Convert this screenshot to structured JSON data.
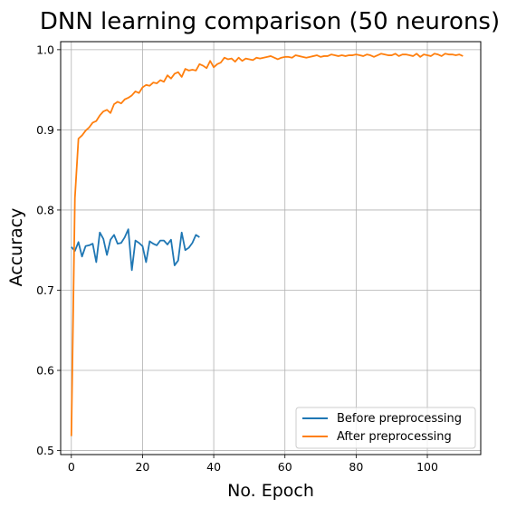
{
  "chart_data": {
    "type": "line",
    "title": "DNN learning comparison (50 neurons)",
    "xlabel": "No. Epoch",
    "ylabel": "Accuracy",
    "xlim": [
      -3,
      115
    ],
    "ylim": [
      0.495,
      1.01
    ],
    "xticks": [
      0,
      20,
      40,
      60,
      80,
      100
    ],
    "yticks": [
      0.5,
      0.6,
      0.7,
      0.8,
      0.9,
      1.0
    ],
    "ytick_labels": [
      "0.5",
      "0.6",
      "0.7",
      "0.8",
      "0.9",
      "1.0"
    ],
    "grid": true,
    "legend_position": "lower-right",
    "series": [
      {
        "name": "Before preprocessing",
        "color": "#1f77b4",
        "x": [
          0,
          1,
          2,
          3,
          4,
          5,
          6,
          7,
          8,
          9,
          10,
          11,
          12,
          13,
          14,
          15,
          16,
          17,
          18,
          19,
          20,
          21,
          22,
          23,
          24,
          25,
          26,
          27,
          28,
          29,
          30,
          31,
          32,
          33,
          34,
          35,
          36
        ],
        "y": [
          0.754,
          0.749,
          0.76,
          0.742,
          0.755,
          0.756,
          0.758,
          0.735,
          0.772,
          0.764,
          0.744,
          0.763,
          0.769,
          0.758,
          0.759,
          0.766,
          0.776,
          0.725,
          0.762,
          0.759,
          0.755,
          0.735,
          0.761,
          0.758,
          0.756,
          0.762,
          0.762,
          0.757,
          0.763,
          0.731,
          0.737,
          0.772,
          0.75,
          0.753,
          0.759,
          0.769,
          0.766
        ]
      },
      {
        "name": "After preprocessing",
        "color": "#ff7f0e",
        "x": [
          0,
          1,
          2,
          3,
          4,
          5,
          6,
          7,
          8,
          9,
          10,
          11,
          12,
          13,
          14,
          15,
          16,
          17,
          18,
          19,
          20,
          21,
          22,
          23,
          24,
          25,
          26,
          27,
          28,
          29,
          30,
          31,
          32,
          33,
          34,
          35,
          36,
          37,
          38,
          39,
          40,
          41,
          42,
          43,
          44,
          45,
          46,
          47,
          48,
          49,
          50,
          51,
          52,
          53,
          54,
          55,
          56,
          57,
          58,
          59,
          60,
          61,
          62,
          63,
          64,
          65,
          66,
          67,
          68,
          69,
          70,
          71,
          72,
          73,
          74,
          75,
          76,
          77,
          78,
          79,
          80,
          81,
          82,
          83,
          84,
          85,
          86,
          87,
          88,
          89,
          90,
          91,
          92,
          93,
          94,
          95,
          96,
          97,
          98,
          99,
          100,
          101,
          102,
          103,
          104,
          105,
          106,
          107,
          108,
          109,
          110
        ],
        "y": [
          0.518,
          0.815,
          0.889,
          0.893,
          0.899,
          0.903,
          0.909,
          0.911,
          0.918,
          0.923,
          0.925,
          0.921,
          0.932,
          0.935,
          0.933,
          0.938,
          0.94,
          0.943,
          0.948,
          0.946,
          0.953,
          0.956,
          0.955,
          0.959,
          0.958,
          0.962,
          0.96,
          0.968,
          0.964,
          0.97,
          0.972,
          0.966,
          0.976,
          0.974,
          0.975,
          0.974,
          0.982,
          0.98,
          0.977,
          0.986,
          0.978,
          0.982,
          0.984,
          0.99,
          0.988,
          0.989,
          0.985,
          0.99,
          0.986,
          0.989,
          0.988,
          0.987,
          0.99,
          0.989,
          0.99,
          0.991,
          0.992,
          0.99,
          0.988,
          0.99,
          0.991,
          0.991,
          0.99,
          0.993,
          0.992,
          0.991,
          0.99,
          0.991,
          0.992,
          0.993,
          0.991,
          0.992,
          0.992,
          0.994,
          0.993,
          0.992,
          0.993,
          0.992,
          0.993,
          0.993,
          0.994,
          0.993,
          0.992,
          0.994,
          0.993,
          0.991,
          0.993,
          0.995,
          0.994,
          0.993,
          0.993,
          0.995,
          0.992,
          0.994,
          0.994,
          0.993,
          0.992,
          0.995,
          0.991,
          0.994,
          0.993,
          0.992,
          0.995,
          0.994,
          0.992,
          0.995,
          0.994,
          0.994,
          0.993,
          0.994,
          0.992
        ]
      }
    ]
  }
}
